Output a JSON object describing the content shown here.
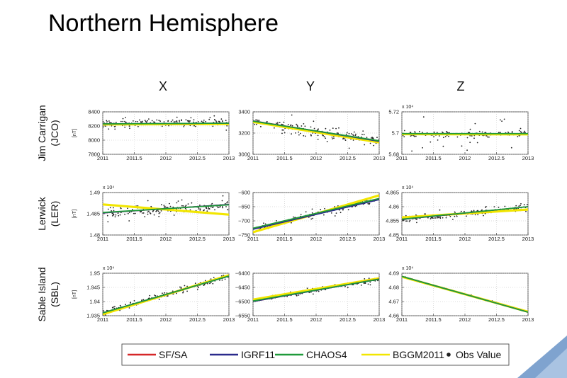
{
  "slide": {
    "title": "Northern Hemisphere"
  },
  "colors": {
    "sf_sa": "#d62728",
    "igrf11": "#2a2a8c",
    "chaos4": "#1f9a3a",
    "bggm2011": "#f2e600",
    "obs": "#222222"
  },
  "chart_data": [
    {
      "type": "scatter",
      "column": "X",
      "row": "Jim Carrigan\n(JCO)",
      "station": "Jim Carrigan",
      "code": "(JCO)",
      "ylabel": "[nT]",
      "x": [
        2011,
        2013
      ],
      "xticks": [
        2011,
        2011.5,
        2012,
        2012.5,
        2013
      ],
      "ylim": [
        7800,
        8400
      ],
      "yticks": [
        7800,
        8000,
        8200,
        8400
      ],
      "yticklabels": [
        "7800",
        "8000",
        "8200",
        "8400"
      ],
      "exp": "",
      "series": [
        {
          "name": "SF/SA",
          "y": [
            8230,
            8240
          ]
        },
        {
          "name": "IGRF11",
          "y": [
            8230,
            8240
          ]
        },
        {
          "name": "CHAOS4",
          "y": [
            8230,
            8240
          ]
        },
        {
          "name": "BGGM2011",
          "y": [
            8222,
            8228
          ]
        }
      ],
      "obs": {
        "start": 8235,
        "end": 8255,
        "noise": 30,
        "n": 160,
        "spread": 100
      }
    },
    {
      "type": "scatter",
      "column": "Y",
      "row": "",
      "ylabel": "",
      "x": [
        2011,
        2013
      ],
      "xticks": [
        2011,
        2011.5,
        2012,
        2012.5,
        2013
      ],
      "ylim": [
        3000,
        3400
      ],
      "yticks": [
        3000,
        3200,
        3400
      ],
      "yticklabels": [
        "3000",
        "3200",
        "3400"
      ],
      "exp": "",
      "series": [
        {
          "name": "SF/SA",
          "y": [
            3315,
            3125
          ]
        },
        {
          "name": "IGRF11",
          "y": [
            3315,
            3122
          ]
        },
        {
          "name": "CHAOS4",
          "y": [
            3312,
            3128
          ]
        },
        {
          "name": "BGGM2011",
          "y": [
            3305,
            3112
          ]
        }
      ],
      "obs": {
        "start": 3310,
        "end": 3120,
        "noise": 25,
        "n": 150,
        "spread": 90
      }
    },
    {
      "type": "scatter",
      "column": "Z",
      "row": "",
      "ylabel": "",
      "x": [
        2011,
        2013
      ],
      "xticks": [
        2011,
        2011.5,
        2012,
        2012.5,
        2013
      ],
      "ylim": [
        56800,
        57200
      ],
      "yticks": [
        56800,
        57000,
        57200
      ],
      "yticklabels": [
        "5.68",
        "5.7",
        "5.72"
      ],
      "exp": "x 10⁴",
      "series": [
        {
          "name": "SF/SA",
          "y": [
            56995,
            56995
          ]
        },
        {
          "name": "IGRF11",
          "y": [
            56995,
            56995
          ]
        },
        {
          "name": "CHAOS4",
          "y": [
            56995,
            56995
          ]
        },
        {
          "name": "BGGM2011",
          "y": [
            56990,
            56988
          ]
        }
      ],
      "obs": {
        "start": 56990,
        "end": 56990,
        "noise": 15,
        "n": 160,
        "spread": 160
      }
    },
    {
      "type": "scatter",
      "column": "X",
      "row": "Lerwick\n(LER)",
      "station": "Lerwick",
      "code": "(LER)",
      "ylabel": "[nT]",
      "x": [
        2011,
        2013
      ],
      "xticks": [
        2011,
        2011.5,
        2012,
        2012.5,
        2013
      ],
      "ylim": [
        14800,
        14900
      ],
      "yticks": [
        14800,
        14850,
        14900
      ],
      "yticklabels": [
        "1.48",
        "1.485",
        "1.49"
      ],
      "exp": "x 10⁴",
      "series": [
        {
          "name": "SF/SA",
          "y": [
            14852,
            14872
          ]
        },
        {
          "name": "IGRF11",
          "y": [
            14852,
            14872
          ]
        },
        {
          "name": "CHAOS4",
          "y": [
            14853,
            14871
          ]
        },
        {
          "name": "BGGM2011",
          "y": [
            14872,
            14848
          ]
        }
      ],
      "obs": {
        "start": 14852,
        "end": 14870,
        "noise": 6,
        "n": 160,
        "spread": 18
      }
    },
    {
      "type": "scatter",
      "column": "Y",
      "row": "",
      "ylabel": "",
      "x": [
        2011,
        2013
      ],
      "xticks": [
        2011,
        2011.5,
        2012,
        2012.5,
        2013
      ],
      "ylim": [
        -750,
        -600
      ],
      "yticks": [
        -750,
        -700,
        -650,
        -600
      ],
      "yticklabels": [
        "−750",
        "−700",
        "−650",
        "−600"
      ],
      "exp": "",
      "series": [
        {
          "name": "SF/SA",
          "y": [
            -728,
            -623
          ]
        },
        {
          "name": "IGRF11",
          "y": [
            -730,
            -625
          ]
        },
        {
          "name": "CHAOS4",
          "y": [
            -726,
            -621
          ]
        },
        {
          "name": "BGGM2011",
          "y": [
            -740,
            -610
          ]
        }
      ],
      "obs": {
        "start": -730,
        "end": -622,
        "noise": 6,
        "n": 150,
        "spread": 15
      }
    },
    {
      "type": "scatter",
      "column": "Z",
      "row": "",
      "ylabel": "",
      "x": [
        2011,
        2013
      ],
      "xticks": [
        2011,
        2011.5,
        2012,
        2012.5,
        2013
      ],
      "ylim": [
        48500,
        48650
      ],
      "yticks": [
        48500,
        48550,
        48600,
        48650
      ],
      "yticklabels": [
        "4.85",
        "4.855",
        "4.86",
        "4.865"
      ],
      "exp": "x 10⁴",
      "series": [
        {
          "name": "SF/SA",
          "y": [
            48555,
            48600
          ]
        },
        {
          "name": "IGRF11",
          "y": [
            48555,
            48600
          ]
        },
        {
          "name": "CHAOS4",
          "y": [
            48556,
            48600
          ]
        },
        {
          "name": "BGGM2011",
          "y": [
            48562,
            48590
          ]
        }
      ],
      "obs": {
        "start": 48555,
        "end": 48598,
        "noise": 6,
        "n": 150,
        "spread": 15
      }
    },
    {
      "type": "scatter",
      "column": "X",
      "row": "Sable Island\n(SBL)",
      "station": "Sable Island",
      "code": "(SBL)",
      "ylabel": "[nT]",
      "x": [
        2011,
        2013
      ],
      "xticks": [
        2011,
        2011.5,
        2012,
        2012.5,
        2013
      ],
      "ylim": [
        19350,
        19500
      ],
      "yticks": [
        19350,
        19400,
        19450,
        19500
      ],
      "yticklabels": [
        "1.935",
        "1.94",
        "1.945",
        "1.95"
      ],
      "exp": "x 10⁴",
      "series": [
        {
          "name": "SF/SA",
          "y": [
            19360,
            19490
          ]
        },
        {
          "name": "IGRF11",
          "y": [
            19360,
            19490
          ]
        },
        {
          "name": "CHAOS4",
          "y": [
            19360,
            19490
          ]
        },
        {
          "name": "BGGM2011",
          "y": [
            19355,
            19493
          ]
        }
      ],
      "obs": {
        "start": 19362,
        "end": 19488,
        "noise": 5,
        "n": 140,
        "spread": 12
      }
    },
    {
      "type": "scatter",
      "column": "Y",
      "row": "",
      "ylabel": "",
      "x": [
        2011,
        2013
      ],
      "xticks": [
        2011,
        2011.5,
        2012,
        2012.5,
        2013
      ],
      "ylim": [
        -6550,
        -6400
      ],
      "yticks": [
        -6550,
        -6500,
        -6450,
        -6400
      ],
      "yticklabels": [
        "−6550",
        "−6500",
        "−6450",
        "−6400"
      ],
      "exp": "",
      "series": [
        {
          "name": "SF/SA",
          "y": [
            -6500,
            -6420
          ]
        },
        {
          "name": "IGRF11",
          "y": [
            -6500,
            -6421
          ]
        },
        {
          "name": "CHAOS4",
          "y": [
            -6498,
            -6421
          ]
        },
        {
          "name": "BGGM2011",
          "y": [
            -6493,
            -6418
          ]
        }
      ],
      "obs": {
        "start": -6497,
        "end": -6422,
        "noise": 4,
        "n": 140,
        "spread": 10
      }
    },
    {
      "type": "scatter",
      "column": "Z",
      "row": "",
      "ylabel": "",
      "x": [
        2011,
        2013
      ],
      "xticks": [
        2011,
        2011.5,
        2012,
        2012.5,
        2013
      ],
      "ylim": [
        46600,
        46900
      ],
      "yticks": [
        46600,
        46700,
        46800,
        46900
      ],
      "yticklabels": [
        "4.66",
        "4.67",
        "4.68",
        "4.69"
      ],
      "exp": "x 10⁴",
      "series": [
        {
          "name": "SF/SA",
          "y": [
            46878,
            46625
          ]
        },
        {
          "name": "IGRF11",
          "y": [
            46878,
            46625
          ]
        },
        {
          "name": "CHAOS4",
          "y": [
            46878,
            46625
          ]
        },
        {
          "name": "BGGM2011",
          "y": [
            46875,
            46628
          ]
        }
      ],
      "obs": {
        "start": 46876,
        "end": 46628,
        "noise": 2,
        "n": 90,
        "spread": 4
      }
    }
  ],
  "columns": [
    "X",
    "Y",
    "Z"
  ],
  "rows": [
    {
      "station": "Jim Carrigan",
      "code": "(JCO)"
    },
    {
      "station": "Lerwick",
      "code": "(LER)"
    },
    {
      "station": "Sable Island",
      "code": "(SBL)"
    }
  ],
  "legend": {
    "placement": "bottom",
    "items": [
      {
        "label": "SF/SA",
        "kind": "line",
        "color": "#d62728"
      },
      {
        "label": "IGRF11",
        "kind": "line",
        "color": "#2a2a8c"
      },
      {
        "label": "CHAOS4",
        "kind": "line",
        "color": "#1f9a3a"
      },
      {
        "label": "BGGM2011",
        "kind": "line",
        "color": "#f2e600"
      },
      {
        "label": "Obs Value",
        "kind": "dot",
        "color": "#222222"
      }
    ]
  }
}
